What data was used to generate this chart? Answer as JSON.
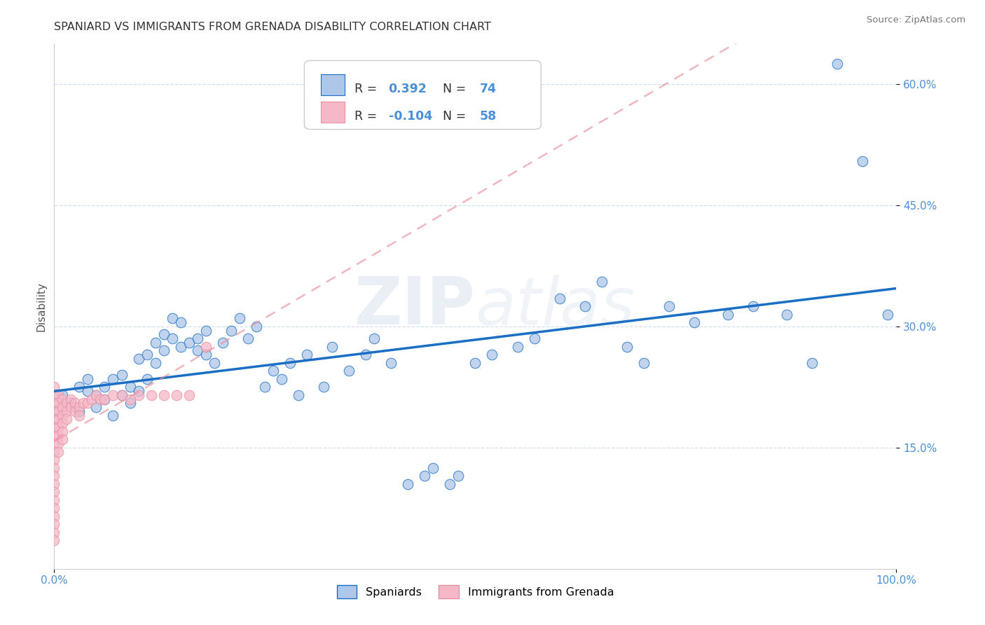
{
  "title": "SPANIARD VS IMMIGRANTS FROM GRENADA DISABILITY CORRELATION CHART",
  "source": "Source: ZipAtlas.com",
  "ylabel": "Disability",
  "r_spaniard": 0.392,
  "n_spaniard": 74,
  "r_grenada": -0.104,
  "n_grenada": 58,
  "xlim": [
    0,
    1.0
  ],
  "ylim": [
    0,
    0.65
  ],
  "yticks": [
    0.15,
    0.3,
    0.45,
    0.6
  ],
  "ytick_labels": [
    "15.0%",
    "30.0%",
    "45.0%",
    "60.0%"
  ],
  "xtick_labels": [
    "0.0%",
    "100.0%"
  ],
  "color_spaniard": "#aec6e8",
  "color_grenada": "#f5b8c8",
  "line_color_spaniard": "#1a6fc4",
  "line_color_grenada": "#e8909f",
  "tick_color": "#4a90d9",
  "background_color": "#ffffff",
  "watermark": "ZIPatlas",
  "spaniard_x": [
    0.01,
    0.02,
    0.03,
    0.03,
    0.04,
    0.04,
    0.05,
    0.05,
    0.06,
    0.06,
    0.07,
    0.07,
    0.08,
    0.08,
    0.09,
    0.09,
    0.1,
    0.1,
    0.11,
    0.11,
    0.12,
    0.12,
    0.13,
    0.13,
    0.14,
    0.14,
    0.15,
    0.15,
    0.16,
    0.17,
    0.17,
    0.18,
    0.18,
    0.19,
    0.2,
    0.21,
    0.22,
    0.23,
    0.24,
    0.25,
    0.26,
    0.27,
    0.28,
    0.29,
    0.3,
    0.32,
    0.33,
    0.35,
    0.37,
    0.38,
    0.4,
    0.42,
    0.44,
    0.45,
    0.47,
    0.48,
    0.5,
    0.52,
    0.55,
    0.57,
    0.6,
    0.63,
    0.65,
    0.68,
    0.7,
    0.73,
    0.76,
    0.8,
    0.83,
    0.87,
    0.9,
    0.93,
    0.96,
    0.99
  ],
  "spaniard_y": [
    0.215,
    0.205,
    0.225,
    0.195,
    0.22,
    0.235,
    0.2,
    0.215,
    0.225,
    0.21,
    0.19,
    0.235,
    0.24,
    0.215,
    0.225,
    0.205,
    0.22,
    0.26,
    0.265,
    0.235,
    0.28,
    0.255,
    0.29,
    0.27,
    0.31,
    0.285,
    0.305,
    0.275,
    0.28,
    0.285,
    0.27,
    0.265,
    0.295,
    0.255,
    0.28,
    0.295,
    0.31,
    0.285,
    0.3,
    0.225,
    0.245,
    0.235,
    0.255,
    0.215,
    0.265,
    0.225,
    0.275,
    0.245,
    0.265,
    0.285,
    0.255,
    0.105,
    0.115,
    0.125,
    0.105,
    0.115,
    0.255,
    0.265,
    0.275,
    0.285,
    0.335,
    0.325,
    0.355,
    0.275,
    0.255,
    0.325,
    0.305,
    0.315,
    0.325,
    0.315,
    0.255,
    0.625,
    0.505,
    0.315
  ],
  "grenada_x": [
    0.0,
    0.0,
    0.0,
    0.0,
    0.0,
    0.0,
    0.0,
    0.0,
    0.0,
    0.0,
    0.0,
    0.0,
    0.0,
    0.0,
    0.0,
    0.0,
    0.0,
    0.0,
    0.0,
    0.0,
    0.005,
    0.005,
    0.005,
    0.005,
    0.005,
    0.005,
    0.005,
    0.005,
    0.01,
    0.01,
    0.01,
    0.01,
    0.01,
    0.01,
    0.015,
    0.015,
    0.015,
    0.02,
    0.02,
    0.025,
    0.025,
    0.03,
    0.03,
    0.035,
    0.04,
    0.045,
    0.05,
    0.055,
    0.06,
    0.07,
    0.08,
    0.09,
    0.1,
    0.115,
    0.13,
    0.145,
    0.16,
    0.18
  ],
  "grenada_y": [
    0.215,
    0.205,
    0.195,
    0.225,
    0.185,
    0.175,
    0.165,
    0.155,
    0.145,
    0.135,
    0.125,
    0.115,
    0.105,
    0.095,
    0.085,
    0.075,
    0.065,
    0.055,
    0.045,
    0.035,
    0.215,
    0.205,
    0.195,
    0.185,
    0.175,
    0.165,
    0.155,
    0.145,
    0.21,
    0.2,
    0.19,
    0.18,
    0.17,
    0.16,
    0.205,
    0.195,
    0.185,
    0.21,
    0.2,
    0.205,
    0.195,
    0.2,
    0.19,
    0.205,
    0.205,
    0.21,
    0.215,
    0.21,
    0.21,
    0.215,
    0.215,
    0.21,
    0.215,
    0.215,
    0.215,
    0.215,
    0.215,
    0.275
  ]
}
